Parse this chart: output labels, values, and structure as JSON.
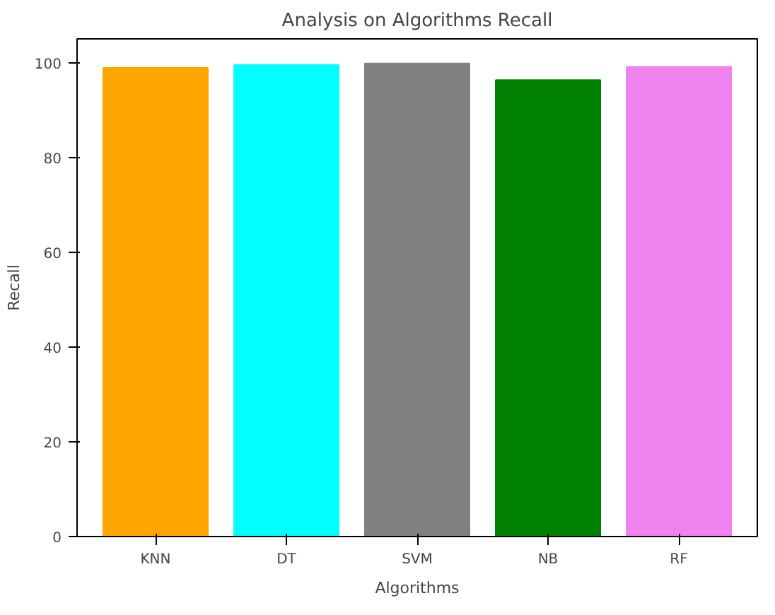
{
  "chart_data": {
    "type": "bar",
    "title": "Analysis on Algorithms Recall",
    "xlabel": "Algorithms",
    "ylabel": "Recall",
    "categories": [
      "KNN",
      "DT",
      "SVM",
      "NB",
      "RF"
    ],
    "values": [
      98.9,
      99.5,
      99.8,
      96.3,
      99.1
    ],
    "colors": [
      "#ffa500",
      "#00ffff",
      "#808080",
      "#008000",
      "#ee82ee"
    ],
    "ylim": [
      0,
      105
    ],
    "yticks": [
      0,
      20,
      40,
      60,
      80,
      100
    ]
  }
}
